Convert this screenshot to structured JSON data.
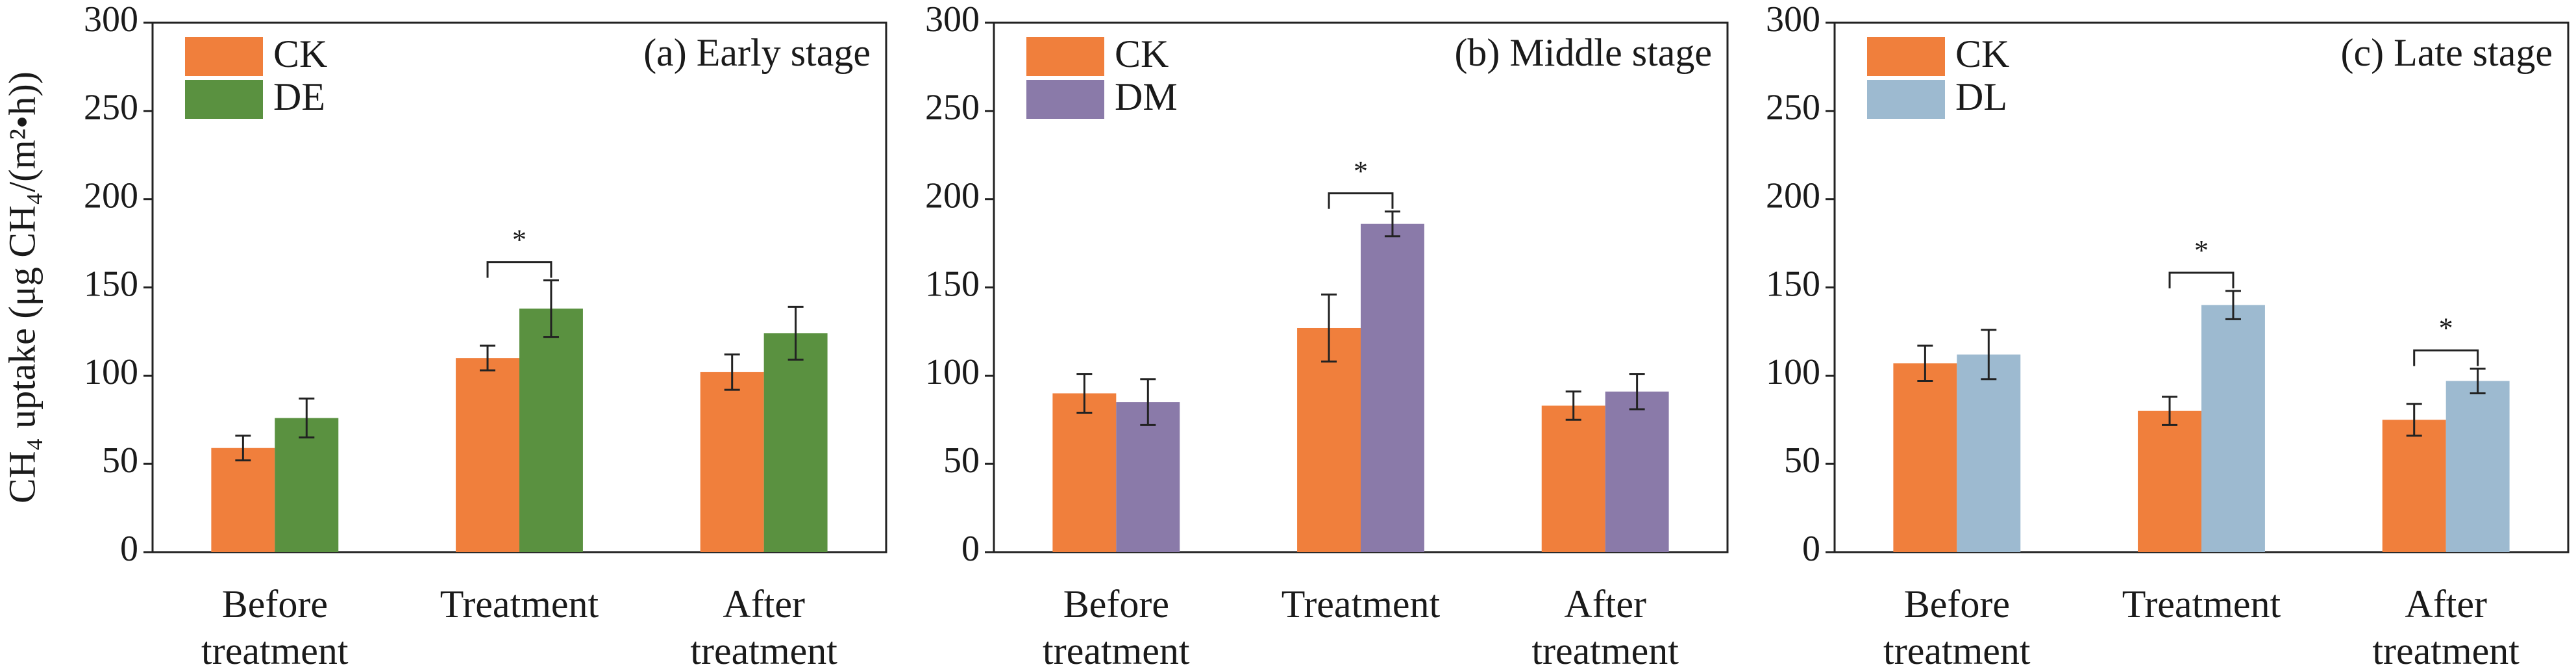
{
  "chart_data": [
    {
      "type": "bar",
      "title": "(a) Early stage",
      "ylabel": "CH₄ uptake (μg CH₄/(m²•h))",
      "categories": [
        "Before treatment",
        "Treatment",
        "After treatment"
      ],
      "series": [
        {
          "name": "CK",
          "color": "#f07f3c",
          "values": [
            59,
            110,
            102
          ],
          "errors": [
            7,
            7,
            10
          ]
        },
        {
          "name": "DE",
          "color": "#5a9140",
          "values": [
            76,
            138,
            124
          ],
          "errors": [
            11,
            16,
            15
          ]
        }
      ],
      "ylim": [
        0,
        300
      ],
      "yticks": [
        0,
        50,
        100,
        150,
        200,
        250,
        300
      ],
      "legend": "upper left",
      "annotations": [
        {
          "text": "*",
          "category": "Treatment"
        }
      ]
    },
    {
      "type": "bar",
      "title": "(b) Middle stage",
      "categories": [
        "Before treatment",
        "Treatment",
        "After treatment"
      ],
      "series": [
        {
          "name": "CK",
          "color": "#f07f3c",
          "values": [
            90,
            127,
            83
          ],
          "errors": [
            11,
            19,
            8
          ]
        },
        {
          "name": "DM",
          "color": "#8a7aa9",
          "values": [
            85,
            186,
            91
          ],
          "errors": [
            13,
            7,
            10
          ]
        }
      ],
      "ylim": [
        0,
        300
      ],
      "yticks": [
        0,
        50,
        100,
        150,
        200,
        250,
        300
      ],
      "legend": "upper left",
      "annotations": [
        {
          "text": "*",
          "category": "Treatment"
        }
      ]
    },
    {
      "type": "bar",
      "title": "(c) Late stage",
      "categories": [
        "Before treatment",
        "Treatment",
        "After treatment"
      ],
      "series": [
        {
          "name": "CK",
          "color": "#f07f3c",
          "values": [
            107,
            80,
            75
          ],
          "errors": [
            10,
            8,
            9
          ]
        },
        {
          "name": "DL",
          "color": "#9dbad0",
          "values": [
            112,
            140,
            97
          ],
          "errors": [
            14,
            8,
            7
          ]
        }
      ],
      "ylim": [
        0,
        300
      ],
      "yticks": [
        0,
        50,
        100,
        150,
        200,
        250,
        300
      ],
      "legend": "upper left",
      "annotations": [
        {
          "text": "*",
          "category": "Treatment"
        },
        {
          "text": "*",
          "category": "After treatment"
        }
      ]
    }
  ]
}
